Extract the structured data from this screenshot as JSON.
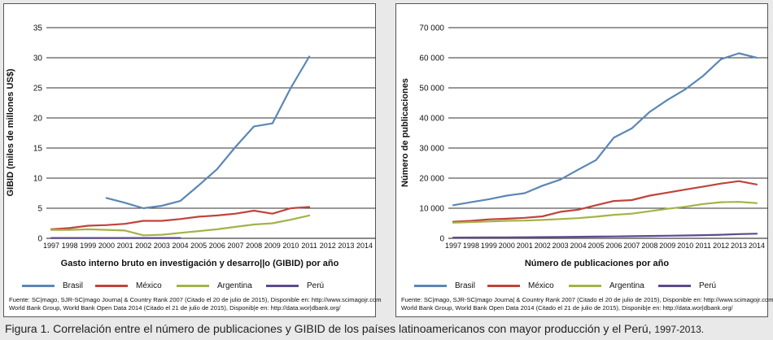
{
  "chart_data": [
    {
      "type": "line",
      "title": "",
      "ylabel": "GIBID (miles de millones US$)",
      "xlabel": "Gasto interno bruto en investigación y desarro||o (GIBID) por año",
      "ylim": [
        0,
        35
      ],
      "yticks": [
        "0",
        "5",
        "10",
        "15",
        "20",
        "25",
        "30",
        "35"
      ],
      "x": [
        1997,
        1998,
        1999,
        2000,
        2001,
        2002,
        2003,
        2004,
        2005,
        2006,
        2007,
        2008,
        2009,
        2010,
        2011,
        2012,
        2013,
        2014
      ],
      "xtick_labels": [
        "1997",
        "1998",
        "1999",
        "2000",
        "2001",
        "2002",
        "2003",
        "2004",
        "2005",
        "2006",
        "2007",
        "2008",
        "2009",
        "2010",
        "2011",
        "2012",
        "2013",
        "2014"
      ],
      "grid": "horizontal",
      "legend_position": "bottom",
      "series": [
        {
          "name": "Brasil",
          "color": "#5b87b5",
          "points": [
            [
              2000,
              6.7
            ],
            [
              2001,
              5.9
            ],
            [
              2002,
              5.0
            ],
            [
              2003,
              5.4
            ],
            [
              2004,
              6.2
            ],
            [
              2005,
              8.8
            ],
            [
              2006,
              11.5
            ],
            [
              2007,
              15.2
            ],
            [
              2008,
              18.6
            ],
            [
              2009,
              19.1
            ],
            [
              2010,
              25.0
            ],
            [
              2011,
              30.2
            ]
          ]
        },
        {
          "name": "México",
          "color": "#c0433b",
          "points": [
            [
              1997,
              1.5
            ],
            [
              1998,
              1.7
            ],
            [
              1999,
              2.1
            ],
            [
              2000,
              2.2
            ],
            [
              2001,
              2.4
            ],
            [
              2002,
              2.9
            ],
            [
              2003,
              2.9
            ],
            [
              2004,
              3.2
            ],
            [
              2005,
              3.6
            ],
            [
              2006,
              3.8
            ],
            [
              2007,
              4.1
            ],
            [
              2008,
              4.6
            ],
            [
              2009,
              4.1
            ],
            [
              2010,
              5.0
            ],
            [
              2011,
              5.2
            ]
          ]
        },
        {
          "name": "Argentina",
          "color": "#a4b347",
          "points": [
            [
              1997,
              1.4
            ],
            [
              1998,
              1.4
            ],
            [
              1999,
              1.5
            ],
            [
              2000,
              1.4
            ],
            [
              2001,
              1.3
            ],
            [
              2002,
              0.5
            ],
            [
              2003,
              0.6
            ],
            [
              2004,
              0.9
            ],
            [
              2005,
              1.2
            ],
            [
              2006,
              1.5
            ],
            [
              2007,
              1.9
            ],
            [
              2008,
              2.3
            ],
            [
              2009,
              2.5
            ],
            [
              2010,
              3.1
            ],
            [
              2011,
              3.8
            ]
          ]
        },
        {
          "name": "Perú",
          "color": "#5d4a8c",
          "points": [
            [
              1997,
              0.05
            ],
            [
              1998,
              0.05
            ],
            [
              1999,
              0.05
            ],
            [
              2000,
              0.05
            ],
            [
              2001,
              0.05
            ],
            [
              2002,
              0.05
            ],
            [
              2003,
              0.05
            ],
            [
              2004,
              0.05
            ]
          ]
        }
      ],
      "source_lines": [
        "Fuente: SC|mago, SJR-SC|mago Journa| & Country Rank 2007 (Citado el 20 de julio de 2015), Disponible en: http://www.scimagojr.com",
        "World Bank Group, World Bank Open Data 2014 (Citado el 21 de julio de 2015), Disponib|e en: http://data.wor|dbank.org/"
      ]
    },
    {
      "type": "line",
      "title": "",
      "ylabel": "Número de publicaciones",
      "xlabel": "Número de publicaciones por año",
      "ylim": [
        0,
        70000
      ],
      "yticks": [
        "0",
        "10 000",
        "20 000",
        "30 000",
        "40 000",
        "50 000",
        "60 000",
        "70 000"
      ],
      "x": [
        1997,
        1998,
        1999,
        2000,
        2001,
        2002,
        2003,
        2004,
        2005,
        2006,
        2007,
        2008,
        2009,
        2010,
        2011,
        2012,
        2013,
        2014
      ],
      "xtick_labels": [
        "1997",
        "1998",
        "1999",
        "2000",
        "2001",
        "2002",
        "2003",
        "2004",
        "2005",
        "2006",
        "2007",
        "2008",
        "2009",
        "2010",
        "2011",
        "2012",
        "2013",
        "2014"
      ],
      "grid": "horizontal",
      "legend_position": "bottom",
      "series": [
        {
          "name": "Brasil",
          "color": "#5b87b5",
          "points": [
            [
              1997,
              11000
            ],
            [
              1998,
              12000
            ],
            [
              1999,
              13000
            ],
            [
              2000,
              14200
            ],
            [
              2001,
              15000
            ],
            [
              2002,
              17500
            ],
            [
              2003,
              19500
            ],
            [
              2004,
              22800
            ],
            [
              2005,
              26000
            ],
            [
              2006,
              33500
            ],
            [
              2007,
              36500
            ],
            [
              2008,
              42000
            ],
            [
              2009,
              46000
            ],
            [
              2010,
              49500
            ],
            [
              2011,
              54000
            ],
            [
              2012,
              59500
            ],
            [
              2013,
              61500
            ],
            [
              2014,
              60000
            ]
          ]
        },
        {
          "name": "México",
          "color": "#c0433b",
          "points": [
            [
              1997,
              5500
            ],
            [
              1998,
              5800
            ],
            [
              1999,
              6300
            ],
            [
              2000,
              6500
            ],
            [
              2001,
              6800
            ],
            [
              2002,
              7300
            ],
            [
              2003,
              8800
            ],
            [
              2004,
              9500
            ],
            [
              2005,
              11000
            ],
            [
              2006,
              12400
            ],
            [
              2007,
              12700
            ],
            [
              2008,
              14200
            ],
            [
              2009,
              15200
            ],
            [
              2010,
              16200
            ],
            [
              2011,
              17200
            ],
            [
              2012,
              18200
            ],
            [
              2013,
              19000
            ],
            [
              2014,
              17900
            ]
          ]
        },
        {
          "name": "Argentina",
          "color": "#a4b347",
          "points": [
            [
              1997,
              5200
            ],
            [
              1998,
              5400
            ],
            [
              1999,
              5600
            ],
            [
              2000,
              5800
            ],
            [
              2001,
              5900
            ],
            [
              2002,
              6100
            ],
            [
              2003,
              6400
            ],
            [
              2004,
              6700
            ],
            [
              2005,
              7200
            ],
            [
              2006,
              7800
            ],
            [
              2007,
              8200
            ],
            [
              2008,
              9000
            ],
            [
              2009,
              9800
            ],
            [
              2010,
              10500
            ],
            [
              2011,
              11400
            ],
            [
              2012,
              12000
            ],
            [
              2013,
              12100
            ],
            [
              2014,
              11700
            ]
          ]
        },
        {
          "name": "Perú",
          "color": "#5d4a8c",
          "points": [
            [
              1997,
              250
            ],
            [
              1998,
              280
            ],
            [
              1999,
              300
            ],
            [
              2000,
              330
            ],
            [
              2001,
              360
            ],
            [
              2002,
              400
            ],
            [
              2003,
              450
            ],
            [
              2004,
              500
            ],
            [
              2005,
              560
            ],
            [
              2006,
              620
            ],
            [
              2007,
              700
            ],
            [
              2008,
              780
            ],
            [
              2009,
              860
            ],
            [
              2010,
              950
            ],
            [
              2011,
              1050
            ],
            [
              2012,
              1200
            ],
            [
              2013,
              1400
            ],
            [
              2014,
              1550
            ]
          ]
        }
      ],
      "source_lines": [
        "Fuente: SC|mago, SJR-SC|mago Journa| & Country Rank 2007 (Citado el 20 de julio de 2015), Disponible en: http://www.scimagojr.com",
        "World Bank Group, World Bank Open Data 2014 (Citado el 21 de julio de 2015), Disponib|e en: http://data.wor|dbank.org/"
      ]
    }
  ],
  "caption": {
    "prefix": "Figura 1. Correlación entre el número de publicaciones y GIBID de los países latinoamericanos con mayor producción y el Perú, ",
    "years": "1997-2013."
  }
}
